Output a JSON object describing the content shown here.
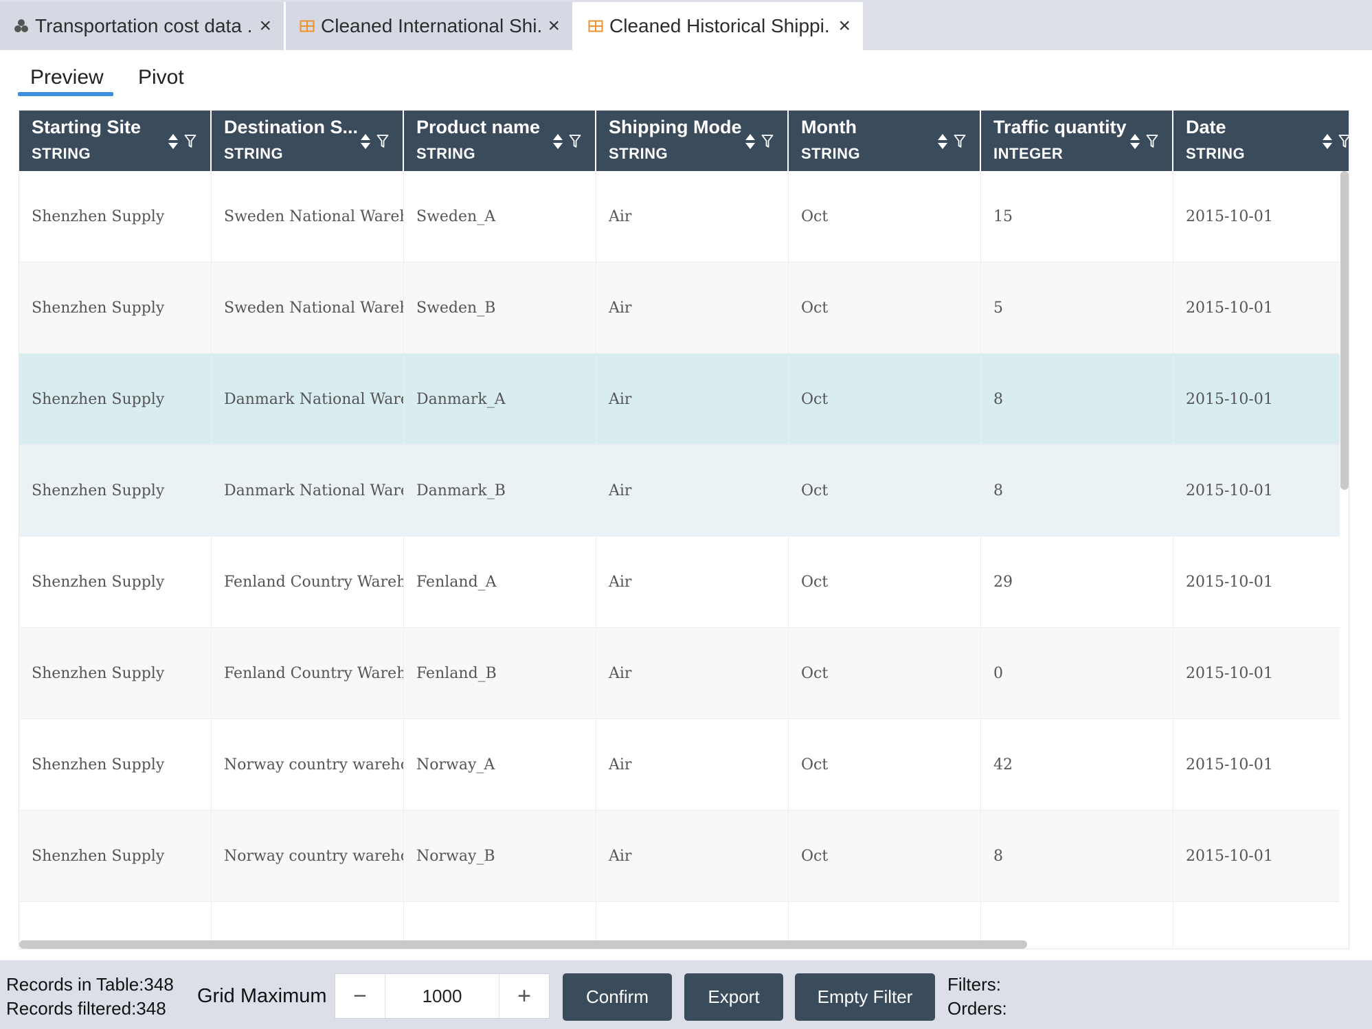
{
  "tabs": [
    {
      "title": "Transportation cost data ...",
      "icon": "clusters-icon",
      "close": "×"
    },
    {
      "title": "Cleaned International Shi...",
      "icon": "table-icon",
      "close": "×"
    },
    {
      "title": "Cleaned Historical Shippi...",
      "icon": "table-icon",
      "close": "×"
    }
  ],
  "subtabs": {
    "preview": "Preview",
    "pivot": "Pivot"
  },
  "columns": [
    {
      "name": "Starting Site",
      "type": "STRING"
    },
    {
      "name": "Destination S...",
      "type": "STRING"
    },
    {
      "name": "Product name",
      "type": "STRING"
    },
    {
      "name": "Shipping Mode",
      "type": "STRING"
    },
    {
      "name": "Month",
      "type": "STRING"
    },
    {
      "name": "Traffic quantity",
      "type": "INTEGER"
    },
    {
      "name": "Date",
      "type": "STRING"
    }
  ],
  "rows": [
    [
      "Shenzhen Supply",
      "Sweden National Warehouse",
      "Sweden_A",
      "Air",
      "Oct",
      "15",
      "2015-10-01"
    ],
    [
      "Shenzhen Supply",
      "Sweden National Warehouse",
      "Sweden_B",
      "Air",
      "Oct",
      "5",
      "2015-10-01"
    ],
    [
      "Shenzhen Supply",
      "Danmark National Warehouse",
      "Danmark_A",
      "Air",
      "Oct",
      "8",
      "2015-10-01"
    ],
    [
      "Shenzhen Supply",
      "Danmark National Warehouse",
      "Danmark_B",
      "Air",
      "Oct",
      "8",
      "2015-10-01"
    ],
    [
      "Shenzhen Supply",
      "Fenland Country Warehouse",
      "Fenland_A",
      "Air",
      "Oct",
      "29",
      "2015-10-01"
    ],
    [
      "Shenzhen Supply",
      "Fenland Country Warehouse",
      "Fenland_B",
      "Air",
      "Oct",
      "0",
      "2015-10-01"
    ],
    [
      "Shenzhen Supply",
      "Norway country warehouse",
      "Norway_A",
      "Air",
      "Oct",
      "42",
      "2015-10-01"
    ],
    [
      "Shenzhen Supply",
      "Norway country warehouse",
      "Norway_B",
      "Air",
      "Oct",
      "8",
      "2015-10-01"
    ]
  ],
  "row_colors": {
    "default": "#ffffff",
    "striped": "#f8f8f8",
    "hover": "#d9ecf0",
    "selected": "#eaf2f5"
  },
  "footer": {
    "records_in_table": "Records in Table:348",
    "records_filtered": "Records filtered:348",
    "grid_maximum_label": "Grid Maximum",
    "grid_maximum_value": "1000",
    "minus": "−",
    "plus": "+",
    "confirm": "Confirm",
    "export": "Export",
    "empty_filter": "Empty Filter",
    "filters": "Filters:",
    "orders": "Orders:"
  },
  "colors": {
    "header_bg": "#3a4b5c",
    "accent": "#3d8fe0",
    "table_icon": "#f0922b"
  }
}
